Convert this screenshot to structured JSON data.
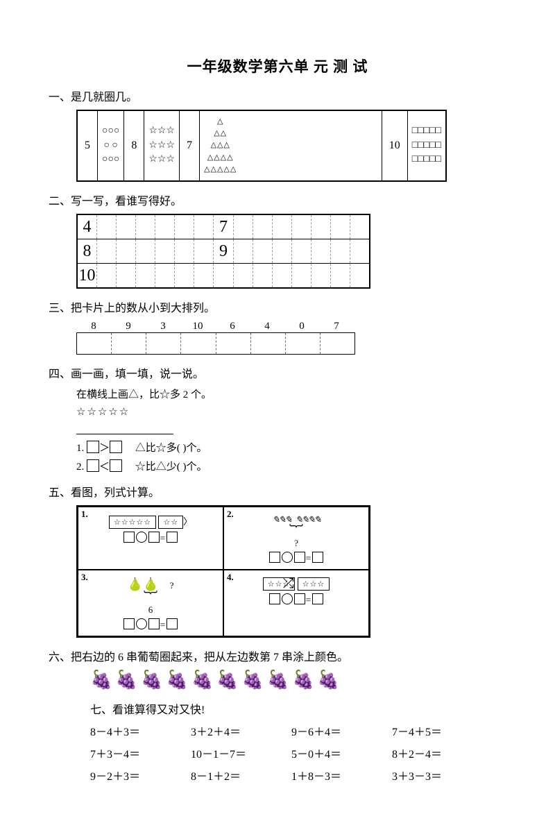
{
  "title": "一年级数学第六单 元 测 试",
  "q1": {
    "title": "一、是几就圈几。",
    "cells": [
      {
        "num": "5",
        "rows": [
          "○○○",
          "○  ○",
          "○○○"
        ],
        "type": "circles"
      },
      {
        "num": "8",
        "rows": [
          "☆☆☆",
          "☆☆☆",
          "☆☆☆"
        ],
        "type": "stars"
      },
      {
        "num": "7",
        "rows": [
          "△",
          "△△",
          "△△△",
          "△△△△",
          "△△△△△"
        ],
        "type": "pyramid"
      },
      {
        "num": "10",
        "rows": [
          "□□□□□",
          "□□□□□",
          "□□□□□"
        ],
        "type": "squares"
      }
    ]
  },
  "q2": {
    "title": "二、写一写，看谁写得好。",
    "rows": [
      {
        "col0": "4",
        "col7": "7"
      },
      {
        "col0": "8",
        "col7": "9"
      },
      {
        "col0": "10",
        "col7": ""
      }
    ],
    "cols": 15
  },
  "q3": {
    "title": "三、把卡片上的数从小到大排列。",
    "nums": [
      "8",
      "9",
      "3",
      "10",
      "6",
      "4",
      "0",
      "7"
    ]
  },
  "q4": {
    "title": "四、画一画，填一填，说一说。",
    "instruction": "在横线上画△，比☆多 2 个。",
    "stars": "☆☆☆☆☆",
    "line1_num": "1.",
    "line1_text": "△比☆多(      )个。",
    "line2_num": "2.",
    "line2_text": "☆比△少(      )个。"
  },
  "q5": {
    "title": "五、看图，列式计算。",
    "panels": [
      {
        "label": "1.",
        "stars1": "☆☆☆☆☆",
        "stars2": "☆☆"
      },
      {
        "label": "2.",
        "group1": "✎✎✎",
        "group2": "✎✎✎✎",
        "q": "?"
      },
      {
        "label": "3.",
        "pears": "🍐🍐",
        "q": "?",
        "total": "6"
      },
      {
        "label": "4.",
        "stars_l": "☆☆☆",
        "stars_r": "☆☆☆"
      }
    ]
  },
  "q6": {
    "title": "六、把右边的 6 串葡萄圈起来，把从左边数第 7 串涂上颜色。",
    "grapes": "🍇🍇🍇🍇🍇🍇🍇🍇🍇🍇"
  },
  "q7": {
    "title": "七、看谁算得又对又快!",
    "problems": [
      "8－4＋3＝",
      "3＋2＋4＝",
      "9－6＋4＝",
      "7－4＋5＝",
      "7＋3－4＝",
      "10－1－7＝",
      "5－0＋4＝",
      "8＋2－4＝",
      "9－2＋3＝",
      "8－1＋2＝",
      "1＋8－3＝",
      "3＋3－3＝"
    ]
  }
}
